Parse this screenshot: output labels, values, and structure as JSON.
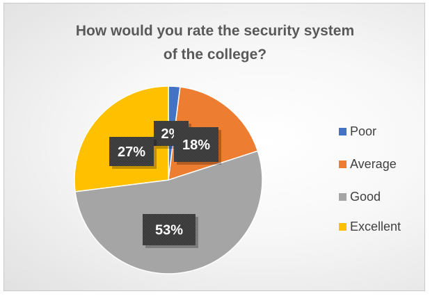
{
  "chart_data": {
    "type": "pie",
    "title": "How would you rate the security system of the college?",
    "title_lines": [
      "How would you rate the security system",
      "of the college?"
    ],
    "categories": [
      "Poor",
      "Average",
      "Good",
      "Excellent"
    ],
    "values": [
      2,
      18,
      53,
      27
    ],
    "data_labels": [
      "2%",
      "18%",
      "53%",
      "27%"
    ],
    "colors": [
      "#4472C4",
      "#ED7D31",
      "#A5A5A5",
      "#FFC000"
    ],
    "legend_position": "right"
  }
}
